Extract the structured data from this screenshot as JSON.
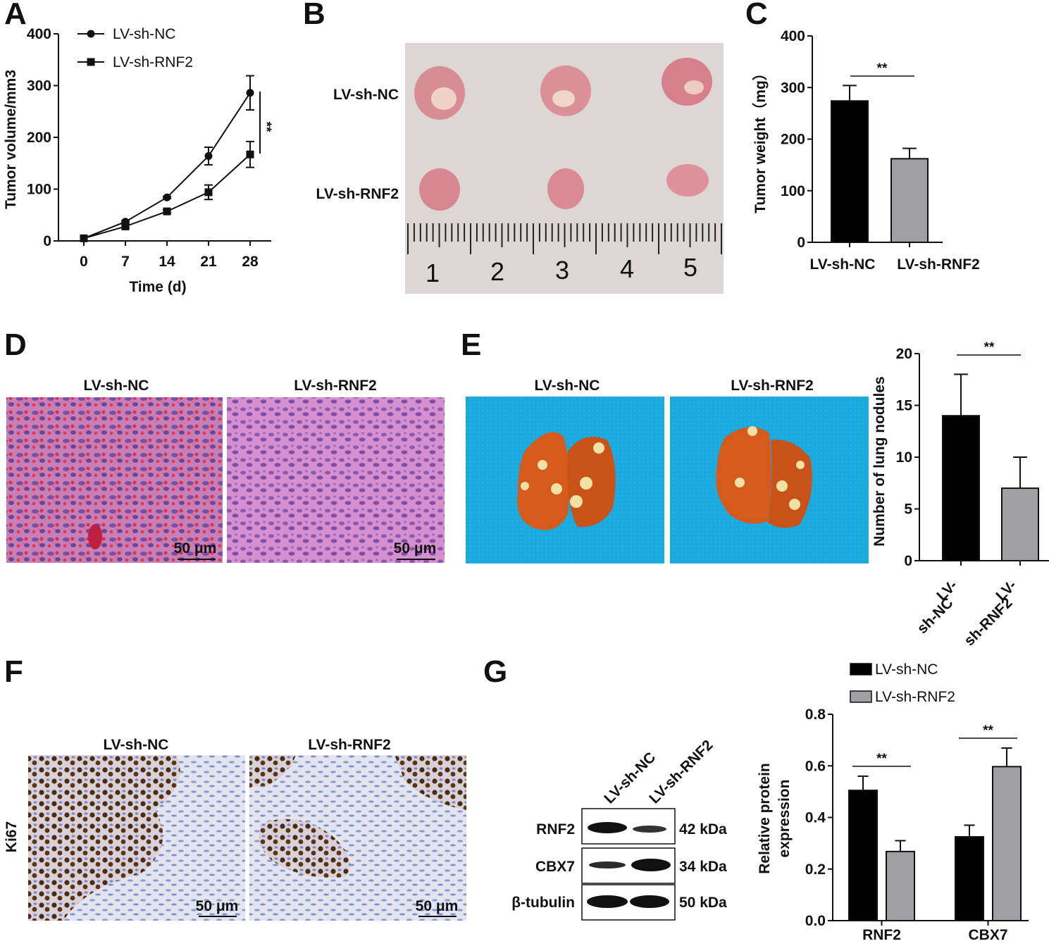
{
  "panels": {
    "a": "A",
    "b": "B",
    "c": "C",
    "d": "D",
    "e": "E",
    "f": "F",
    "g": "G"
  },
  "colors": {
    "nc": "#000000",
    "rnf2": "#a0a0a4",
    "he_stain": "#b04c9a",
    "blood": "#e0304c",
    "lung": "#d65a1c",
    "nodule": "#f1e2a4",
    "dish": "#1aa8dd",
    "ki67_pos": "#4a2c16",
    "ki67_bg": "#a9b7dc"
  },
  "chart_data": [
    {
      "id": "A",
      "type": "line",
      "xlabel": "Time (d)",
      "ylabel": "Tumor volume/mm3",
      "categories": [
        "0",
        "7",
        "14",
        "21",
        "28"
      ],
      "x": [
        0,
        7,
        14,
        21,
        28
      ],
      "ylim": [
        0,
        400
      ],
      "yticks": [
        "0",
        "100",
        "200",
        "300",
        "400"
      ],
      "legend_position": "top-left",
      "series": [
        {
          "name": "LV-sh-NC",
          "marker": "circle",
          "values": [
            5,
            37,
            84,
            164,
            286
          ],
          "errors": [
            0,
            2,
            2,
            17,
            33
          ]
        },
        {
          "name": "LV-sh-RNF2",
          "marker": "square",
          "values": [
            5,
            28,
            57,
            94,
            167
          ],
          "errors": [
            0,
            3,
            3,
            14,
            25
          ]
        }
      ],
      "significance": "**"
    },
    {
      "id": "C",
      "type": "bar",
      "categories": [
        "LV-sh-NC",
        "LV-sh-RNF2"
      ],
      "ylabel": "Tumor weight（mg）",
      "ylim": [
        0,
        400
      ],
      "yticks": [
        "0",
        "100",
        "200",
        "300",
        "400"
      ],
      "values": [
        274,
        162
      ],
      "errors": [
        30,
        20
      ],
      "significance": "**"
    },
    {
      "id": "E",
      "type": "bar",
      "categories": [
        "LV-sh-NC",
        "LV-sh-RNF2"
      ],
      "category_label_lines": [
        [
          "LV-",
          "sh-NC"
        ],
        [
          "LV-",
          "sh-RNF2"
        ]
      ],
      "ylabel": "Number of lung nodules",
      "ylim": [
        0,
        20
      ],
      "yticks": [
        "0",
        "5",
        "10",
        "15",
        "20"
      ],
      "values": [
        14,
        7
      ],
      "errors": [
        4,
        3
      ],
      "significance": "**"
    },
    {
      "id": "G",
      "type": "bar",
      "categories": [
        "RNF2",
        "CBX7"
      ],
      "ylabel_lines": [
        "Relative  protein",
        "expression"
      ],
      "ylim": [
        0,
        0.8
      ],
      "yticks": [
        "0.0",
        "0.2",
        "0.4",
        "0.6",
        "0.8"
      ],
      "legend_position": "top",
      "series": [
        {
          "name": "LV-sh-NC",
          "values": [
            0.505,
            0.325
          ],
          "errors": [
            0.055,
            0.045
          ]
        },
        {
          "name": "LV-sh-RNF2",
          "values": [
            0.268,
            0.597
          ],
          "errors": [
            0.042,
            0.072
          ]
        }
      ],
      "significance": [
        "**",
        "**"
      ]
    }
  ],
  "photo_b": {
    "row_labels": [
      "LV-sh-NC",
      "LV-sh-RNF2"
    ],
    "ruler_numbers": [
      "1",
      "2",
      "3",
      "4",
      "5"
    ]
  },
  "photo_d": {
    "headers": [
      "LV-sh-NC",
      "LV-sh-RNF2"
    ],
    "scale": "50 μm"
  },
  "photo_e": {
    "headers": [
      "LV-sh-NC",
      "LV-sh-RNF2"
    ]
  },
  "photo_f": {
    "headers": [
      "LV-sh-NC",
      "LV-sh-RNF2"
    ],
    "row_label": "Ki67",
    "scale": "50 μm"
  },
  "blot_g": {
    "lanes": [
      "LV-sh-NC",
      "LV-sh-RNF2"
    ],
    "proteins": [
      "RNF2",
      "CBX7",
      "β-tubulin"
    ],
    "sizes": [
      "42 kDa",
      "34 kDa",
      "50 kDa"
    ]
  }
}
